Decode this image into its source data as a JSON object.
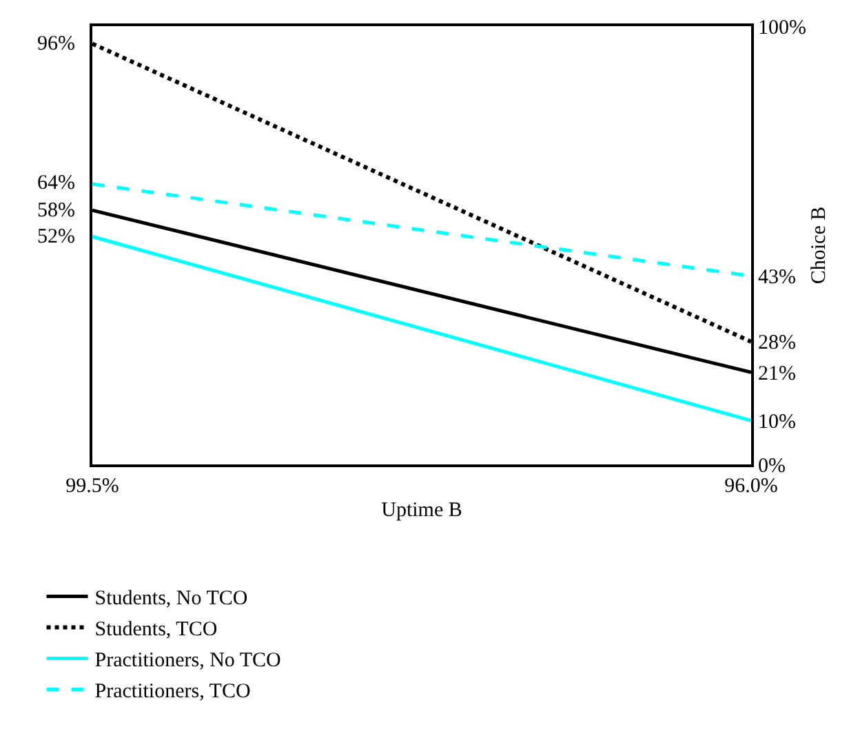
{
  "chart_data": {
    "type": "line",
    "xlabel": "Uptime B",
    "ylabel": "Choice B",
    "x": [
      99.5,
      96.0
    ],
    "xlim": [
      99.5,
      96.0
    ],
    "xticks": [
      {
        "value": 99.5,
        "label": "99.5%"
      },
      {
        "value": 96.0,
        "label": "96.0%"
      }
    ],
    "ylim": [
      0,
      100
    ],
    "yticks": [
      {
        "value": 0,
        "label": "0%"
      },
      {
        "value": 10,
        "label": "10%"
      },
      {
        "value": 21,
        "label": "21%"
      },
      {
        "value": 28,
        "label": "28%"
      },
      {
        "value": 43,
        "label": "43%"
      },
      {
        "value": 100,
        "label": "100%"
      }
    ],
    "series": [
      {
        "name": "Students, No TCO",
        "color": "#000000",
        "line_style": "solid",
        "values": [
          58,
          21
        ],
        "value_labels": [
          "58%",
          null
        ]
      },
      {
        "name": "Students, TCO",
        "color": "#000000",
        "line_style": "dotted",
        "values": [
          96,
          28
        ],
        "value_labels": [
          "96%",
          null
        ]
      },
      {
        "name": "Practitioners, No TCO",
        "color": "#00ffff",
        "line_style": "solid",
        "values": [
          52,
          10
        ],
        "value_labels": [
          "52%",
          null
        ]
      },
      {
        "name": "Practitioners, TCO",
        "color": "#00ffff",
        "line_style": "dashed",
        "values": [
          64,
          43
        ],
        "value_labels": [
          "64%",
          null
        ]
      }
    ],
    "legend": "bottom",
    "marker": "none"
  }
}
